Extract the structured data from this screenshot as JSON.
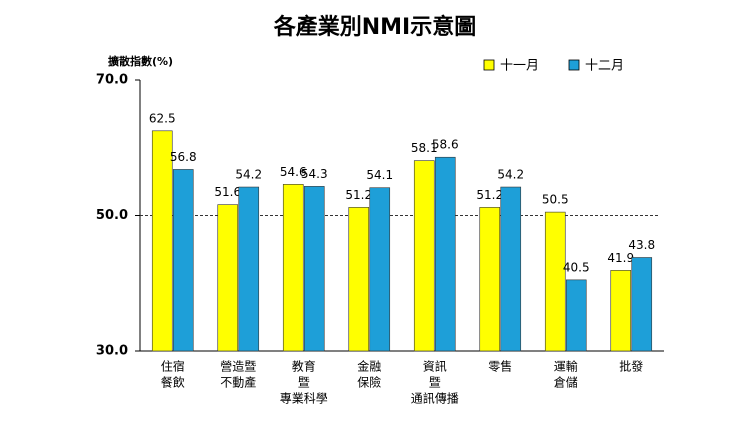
{
  "chart_data": {
    "type": "bar",
    "title": "各產業別NMI示意圖",
    "y_label": "擴散指數(%)",
    "categories": [
      [
        "住宿",
        "餐飲"
      ],
      [
        "營造暨",
        "不動產"
      ],
      [
        "教育",
        "暨",
        "專業科學"
      ],
      [
        "金融",
        "保險"
      ],
      [
        "資訊",
        "暨",
        "通訊傳播"
      ],
      [
        "零售"
      ],
      [
        "運輸",
        "倉儲"
      ],
      [
        "批發"
      ]
    ],
    "series": [
      {
        "name": "十一月",
        "color": "#ffff00",
        "values": [
          62.5,
          51.6,
          54.6,
          51.2,
          58.1,
          51.2,
          50.5,
          41.9
        ]
      },
      {
        "name": "十二月",
        "color": "#1e9fd8",
        "values": [
          56.8,
          54.2,
          54.3,
          54.1,
          58.6,
          54.2,
          40.5,
          43.8
        ]
      }
    ],
    "ylim": [
      30,
      70
    ],
    "yticks": [
      {
        "value": 30,
        "label": "30.0"
      },
      {
        "value": 50,
        "label": "50.0"
      },
      {
        "value": 70,
        "label": "70.0"
      }
    ],
    "reference_line": 50,
    "legend": "top-right"
  }
}
